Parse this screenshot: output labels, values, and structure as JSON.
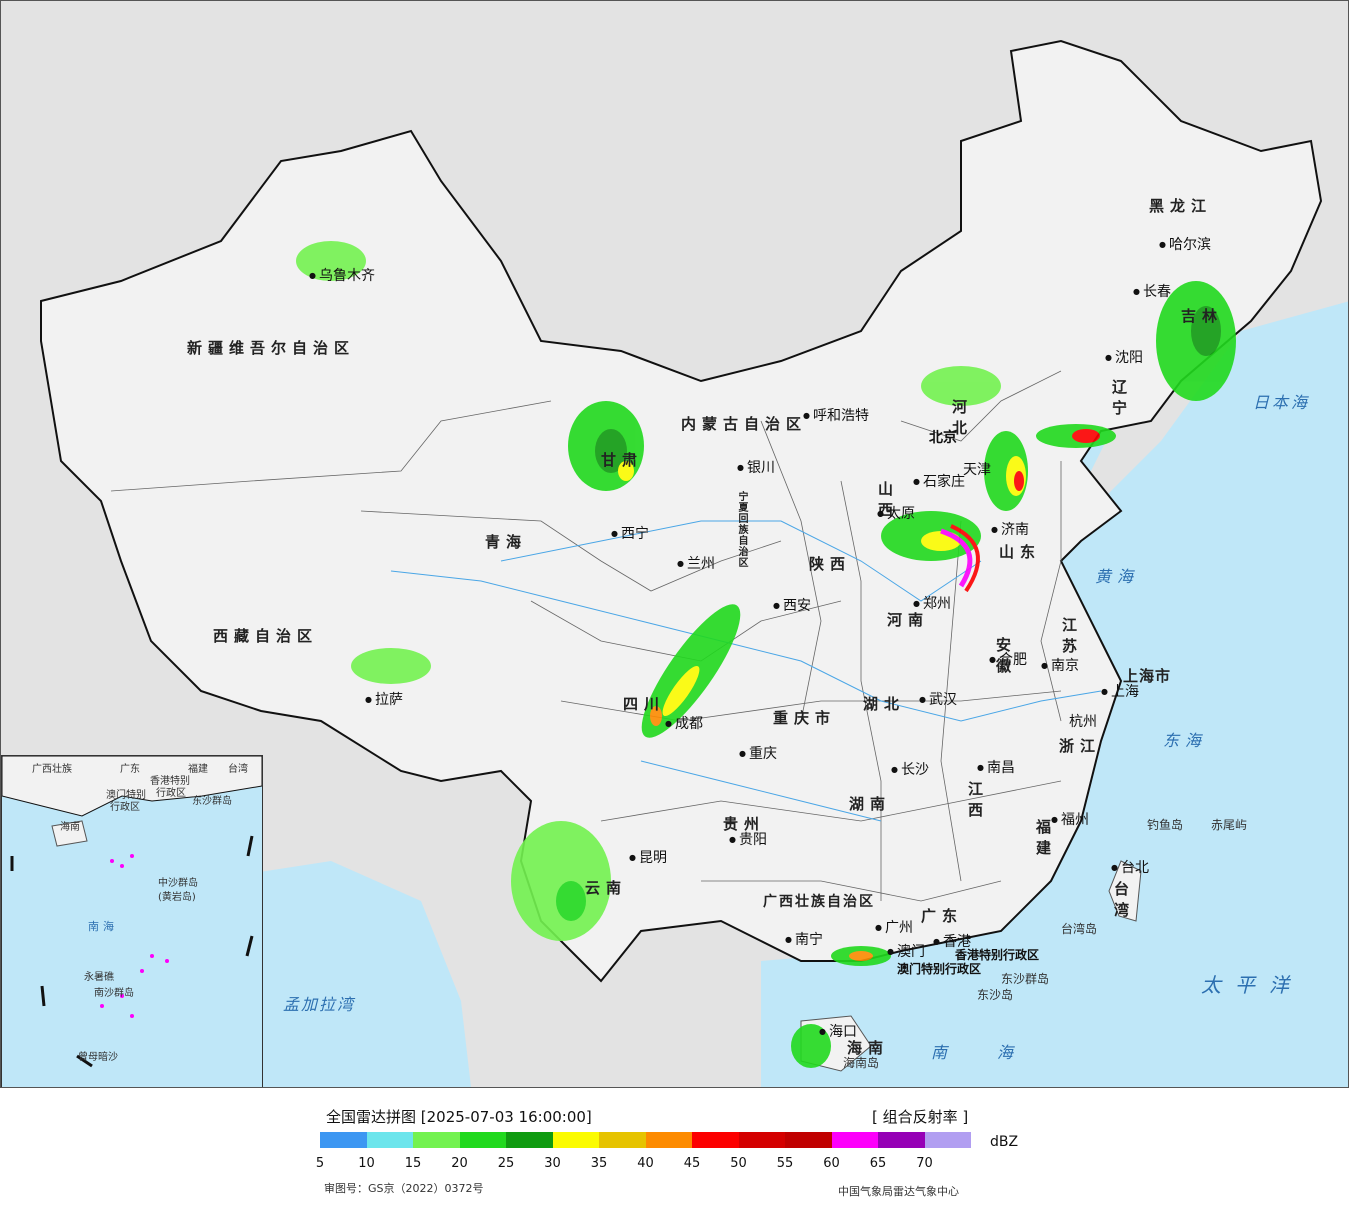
{
  "map": {
    "provinces": [
      "新疆维吾尔自治区",
      "西藏自治区",
      "青海",
      "甘肃",
      "内蒙古自治区",
      "宁夏回族自治区",
      "陕西",
      "四川",
      "重庆市",
      "云南",
      "贵州",
      "广西壮族自治区",
      "广东",
      "湖南",
      "湖北",
      "河南",
      "山西",
      "河北",
      "山东",
      "江苏",
      "安徽",
      "江西",
      "浙江",
      "福建",
      "上海市",
      "台湾",
      "辽宁",
      "吉林",
      "黑龙江",
      "海南",
      "香港特别行政区",
      "澳门特别行政区"
    ],
    "cities": [
      "乌鲁木齐",
      "拉萨",
      "西宁",
      "兰州",
      "银川",
      "呼和浩特",
      "北京",
      "天津",
      "石家庄",
      "太原",
      "济南",
      "郑州",
      "西安",
      "成都",
      "重庆",
      "武汉",
      "合肥",
      "南京",
      "上海",
      "杭州",
      "长沙",
      "南昌",
      "福州",
      "贵阳",
      "昆明",
      "南宁",
      "广州",
      "香港",
      "澳门",
      "海口",
      "台北",
      "沈阳",
      "长春",
      "哈尔滨"
    ],
    "seas": [
      "日本海",
      "黄海",
      "东海",
      "太平洋",
      "南海",
      "孟加拉湾"
    ],
    "islands": [
      "钓鱼岛",
      "赤尾屿",
      "台湾岛",
      "东沙群岛",
      "东沙岛",
      "海南岛"
    ],
    "inset": {
      "labels": [
        "广西壮族",
        "广东",
        "福建",
        "台湾",
        "香港特别",
        "行政区",
        "澳门特别",
        "行政区",
        "东沙群岛",
        "海南",
        "中沙群岛",
        "(黄岩岛)",
        "南海",
        "永暑礁",
        "南沙群岛",
        "曾母暗沙"
      ]
    }
  },
  "legend": {
    "title": "全国雷达拼图 [2025-07-03 16:00:00]",
    "product": "[ 组合反射率 ]",
    "unit": "dBZ",
    "ticks": [
      "5",
      "10",
      "15",
      "20",
      "25",
      "30",
      "35",
      "40",
      "45",
      "50",
      "55",
      "60",
      "65",
      "70"
    ],
    "colors": [
      "#3d97f2",
      "#6ce5ec",
      "#73f250",
      "#21d91e",
      "#0f9b10",
      "#fbfb01",
      "#e6c300",
      "#fd8b01",
      "#fc0000",
      "#d40000",
      "#c00000",
      "#fd00fb",
      "#9600b6",
      "#b19ef1"
    ],
    "approval": "审图号：GS京（2022）0372号",
    "agency": "中国气象局雷达气象中心"
  }
}
